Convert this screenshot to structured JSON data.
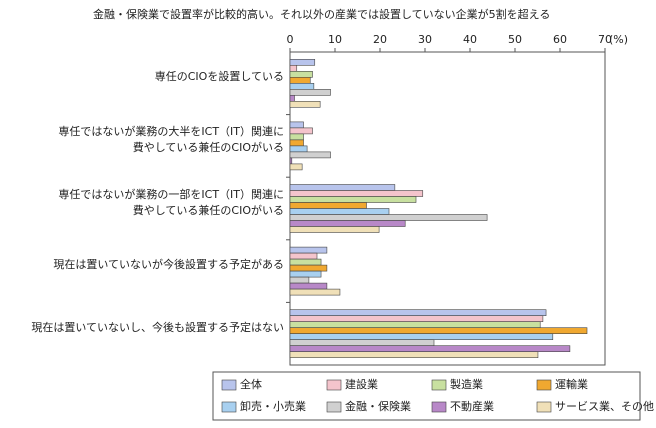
{
  "chart_data": {
    "type": "hbar",
    "title": "金融・保険業で設置率が比較的高い。それ以外の産業では設置していない企業が5割を超える",
    "xlabel": "(%)",
    "categories": [
      "専任のCIOを設置している",
      "専任ではないが業務の大半をICT（IT）関連に\n費やしている兼任のCIOがいる",
      "専任ではないが業務の一部をICT（IT）関連に\n費やしている兼任のCIOがいる",
      "現在は置いていないが今後設置する予定がある",
      "現在は置いていないし、今後も設置する予定はない"
    ],
    "series": [
      {
        "name": "全体",
        "color": "#b8c4ec",
        "values": [
          5.5,
          3,
          23.3,
          8.2,
          56.9
        ]
      },
      {
        "name": "建設業",
        "color": "#f4c4cc",
        "values": [
          1.5,
          5,
          29.5,
          6,
          56.2
        ]
      },
      {
        "name": "製造業",
        "color": "#c8e0a0",
        "values": [
          5,
          3,
          28,
          6.9,
          55.6
        ]
      },
      {
        "name": "運輸業",
        "color": "#f0a830",
        "values": [
          4.5,
          3,
          17,
          8.2,
          66
        ]
      },
      {
        "name": "卸売・小売業",
        "color": "#a8d0f0",
        "values": [
          5.3,
          3.8,
          22,
          6.9,
          58.4
        ]
      },
      {
        "name": "金融・保険業",
        "color": "#d0d0d0",
        "values": [
          9,
          9,
          43.8,
          4.2,
          32
        ]
      },
      {
        "name": "不動産業",
        "color": "#b888c8",
        "values": [
          1,
          0.4,
          25.6,
          8.2,
          62.2
        ]
      },
      {
        "name": "サービス業、その他",
        "color": "#f0e0b8",
        "values": [
          6.7,
          2.7,
          19.8,
          11.1,
          55.1
        ]
      }
    ],
    "xlim": [
      0,
      70
    ],
    "xticks": [
      0,
      10,
      20,
      30,
      40,
      50,
      60,
      70
    ]
  }
}
